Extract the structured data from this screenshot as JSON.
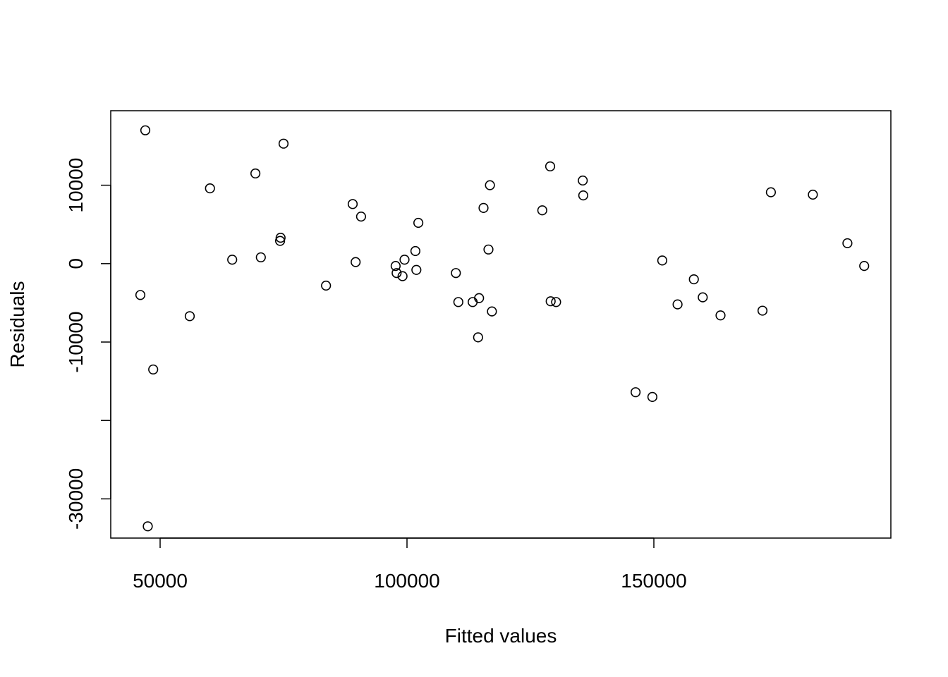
{
  "chart_data": {
    "type": "scatter",
    "title": "",
    "xlabel": "Fitted values",
    "ylabel": "Residuals",
    "xlim": [
      40000,
      198000
    ],
    "ylim": [
      -35000,
      19500
    ],
    "x_ticks": [
      {
        "value": 50000,
        "label": "50000"
      },
      {
        "value": 100000,
        "label": "100000"
      },
      {
        "value": 150000,
        "label": "150000"
      }
    ],
    "y_ticks": [
      {
        "value": -30000,
        "label": "-30000"
      },
      {
        "value": -20000,
        "label": ""
      },
      {
        "value": -10000,
        "label": "-10000"
      },
      {
        "value": 0,
        "label": "0"
      },
      {
        "value": 10000,
        "label": "10000"
      }
    ],
    "grid": false,
    "points": [
      {
        "x": 47000,
        "y": 17000
      },
      {
        "x": 46000,
        "y": -4000
      },
      {
        "x": 48600,
        "y": -13500
      },
      {
        "x": 47500,
        "y": -33500
      },
      {
        "x": 56000,
        "y": -6700
      },
      {
        "x": 60100,
        "y": 9600
      },
      {
        "x": 64600,
        "y": 500
      },
      {
        "x": 69300,
        "y": 11500
      },
      {
        "x": 70400,
        "y": 800
      },
      {
        "x": 74400,
        "y": 3300
      },
      {
        "x": 74300,
        "y": 2900
      },
      {
        "x": 75000,
        "y": 15300
      },
      {
        "x": 83600,
        "y": -2800
      },
      {
        "x": 89000,
        "y": 7600
      },
      {
        "x": 89600,
        "y": 200
      },
      {
        "x": 90700,
        "y": 6000
      },
      {
        "x": 97700,
        "y": -300
      },
      {
        "x": 97900,
        "y": -1200
      },
      {
        "x": 99100,
        "y": -1600
      },
      {
        "x": 99500,
        "y": 500
      },
      {
        "x": 101700,
        "y": 1600
      },
      {
        "x": 101900,
        "y": -800
      },
      {
        "x": 102300,
        "y": 5200
      },
      {
        "x": 109900,
        "y": -1200
      },
      {
        "x": 110400,
        "y": -4900
      },
      {
        "x": 113300,
        "y": -4900
      },
      {
        "x": 114400,
        "y": -9400
      },
      {
        "x": 114600,
        "y": -4400
      },
      {
        "x": 115500,
        "y": 7100
      },
      {
        "x": 116500,
        "y": 1800
      },
      {
        "x": 116800,
        "y": 10000
      },
      {
        "x": 117200,
        "y": -6100
      },
      {
        "x": 127400,
        "y": 6800
      },
      {
        "x": 129000,
        "y": 12400
      },
      {
        "x": 129100,
        "y": -4800
      },
      {
        "x": 130200,
        "y": -4900
      },
      {
        "x": 135600,
        "y": 10600
      },
      {
        "x": 135700,
        "y": 8700
      },
      {
        "x": 146300,
        "y": -16400
      },
      {
        "x": 149700,
        "y": -17000
      },
      {
        "x": 151700,
        "y": 400
      },
      {
        "x": 154800,
        "y": -5200
      },
      {
        "x": 158100,
        "y": -2000
      },
      {
        "x": 159900,
        "y": -4300
      },
      {
        "x": 163500,
        "y": -6600
      },
      {
        "x": 172000,
        "y": -6000
      },
      {
        "x": 173700,
        "y": 9100
      },
      {
        "x": 182200,
        "y": 8800
      },
      {
        "x": 189200,
        "y": 2600
      },
      {
        "x": 192600,
        "y": -300
      }
    ]
  }
}
